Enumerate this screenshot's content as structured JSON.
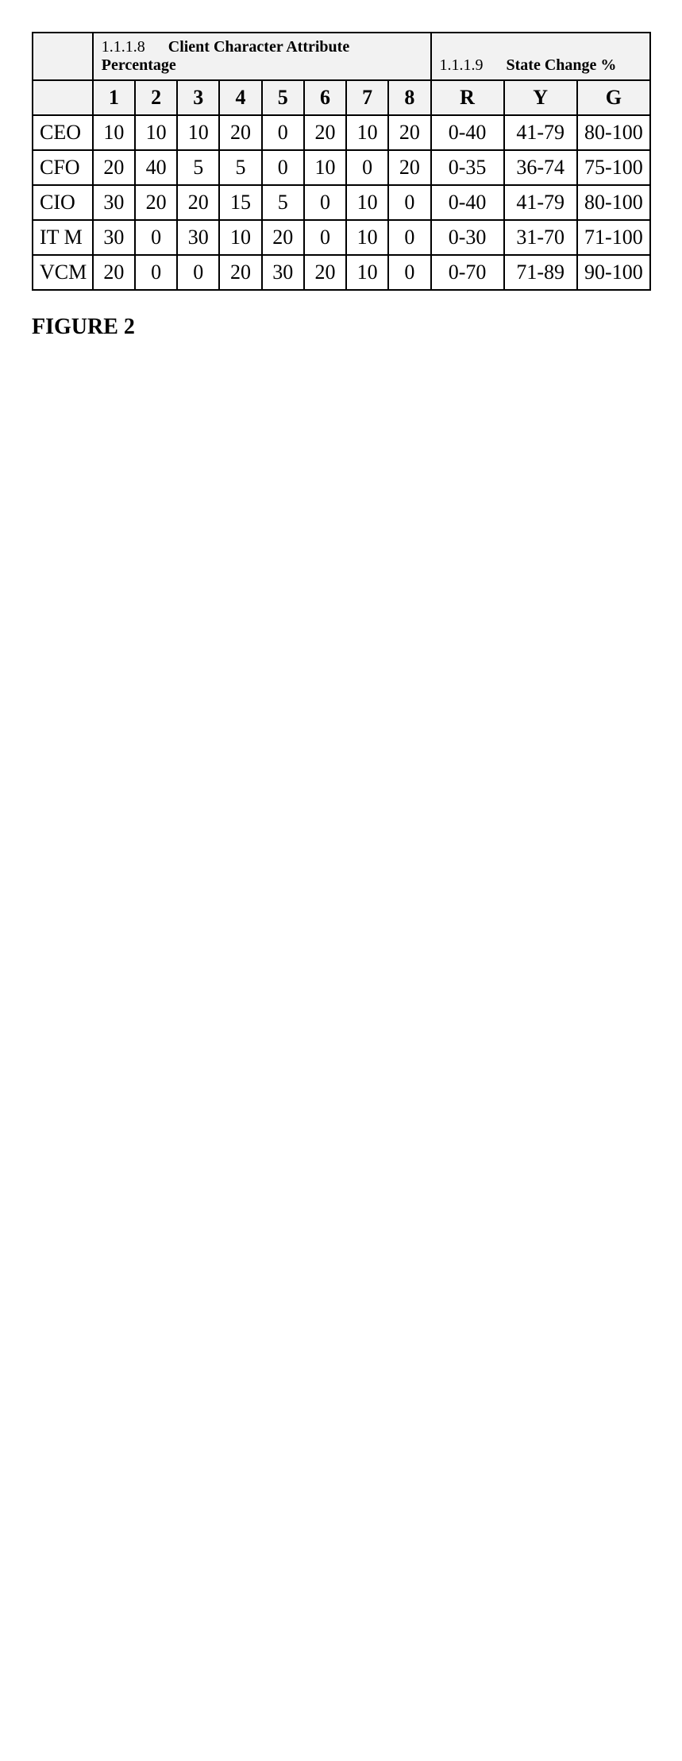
{
  "caption": "FIGURE 2",
  "table": {
    "type": "table",
    "background_color": "#ffffff",
    "border_color": "#000000",
    "header_fill": "#f2f2f2",
    "font_family": "Times New Roman",
    "cell_fontsize_pt": 26,
    "section_fontsize_pt": 20,
    "caption_fontsize_pt": 28,
    "sections": {
      "attributes": {
        "id": "1.1.1.8",
        "title": "Client Character Attribute Percentage"
      },
      "state": {
        "id": "1.1.1.9",
        "title": "State Change %"
      }
    },
    "attribute_columns": [
      "1",
      "2",
      "3",
      "4",
      "5",
      "6",
      "7",
      "8"
    ],
    "state_columns": [
      "R",
      "Y",
      "G"
    ],
    "rows": [
      {
        "role": "CEO",
        "attrs": [
          "10",
          "10",
          "10",
          "20",
          "0",
          "20",
          "10",
          "20"
        ],
        "state": [
          "0-40",
          "41-79",
          "80-100"
        ]
      },
      {
        "role": "CFO",
        "attrs": [
          "20",
          "40",
          "5",
          "5",
          "0",
          "10",
          "0",
          "20"
        ],
        "state": [
          "0-35",
          "36-74",
          "75-100"
        ]
      },
      {
        "role": "CIO",
        "attrs": [
          "30",
          "20",
          "20",
          "15",
          "5",
          "0",
          "10",
          "0"
        ],
        "state": [
          "0-40",
          "41-79",
          "80-100"
        ]
      },
      {
        "role": "IT M",
        "attrs": [
          "30",
          "0",
          "30",
          "10",
          "20",
          "0",
          "10",
          "0"
        ],
        "state": [
          "0-30",
          "31-70",
          "71-100"
        ]
      },
      {
        "role": "VCM",
        "attrs": [
          "20",
          "0",
          "0",
          "20",
          "30",
          "20",
          "10",
          "0"
        ],
        "state": [
          "0-70",
          "71-89",
          "90-100"
        ]
      }
    ]
  }
}
